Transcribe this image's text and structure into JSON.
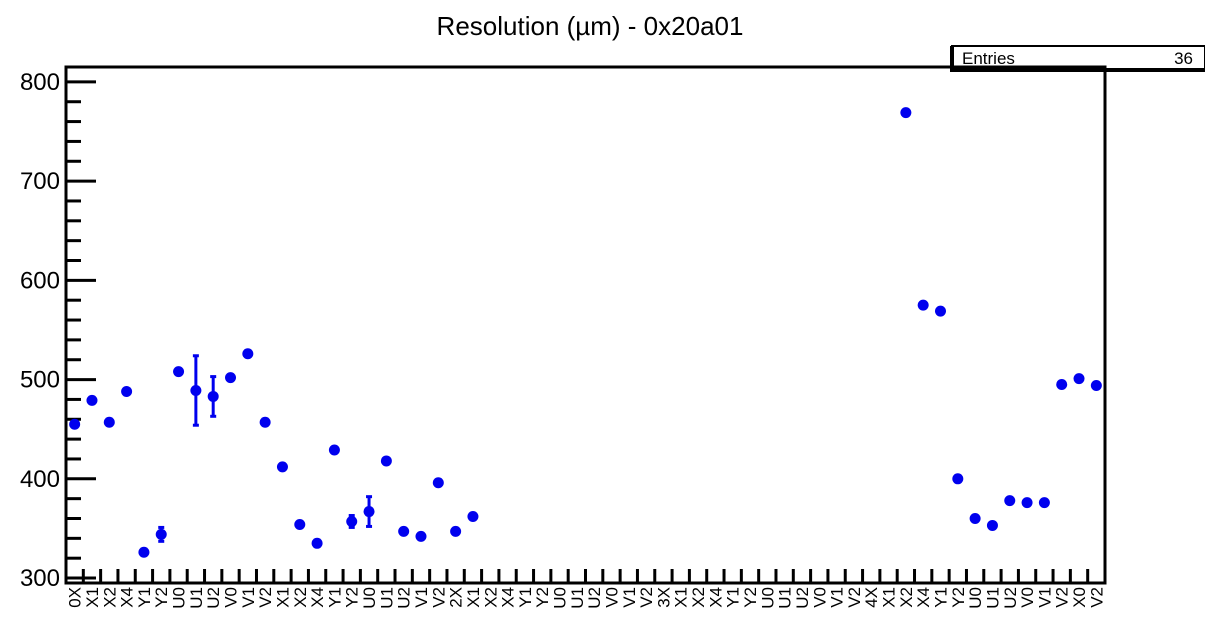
{
  "chart_data": {
    "type": "scatter",
    "title": "Resolution (µm) - 0x20a01",
    "xlabel": "",
    "ylabel": "",
    "ylim": [
      295,
      815
    ],
    "yticks": [
      "300",
      "400",
      "500",
      "600",
      "700",
      "800"
    ],
    "stats": {
      "label": "Entries",
      "value": "36"
    },
    "marker_color": "#0000ee",
    "categories": [
      "0X",
      "X1",
      "X2",
      "X4",
      "Y1",
      "Y2",
      "U0",
      "U1",
      "U2",
      "V0",
      "V1",
      "V2",
      "X0",
      "X1",
      "X2",
      "X4",
      "Y1",
      "Y2",
      "U0",
      "U1",
      "U2",
      "V0",
      "V1",
      "V2",
      "X0",
      "X1",
      "X2",
      "X4",
      "Y1",
      "Y2",
      "U0",
      "U1",
      "U2",
      "V0",
      "V1",
      "V2",
      "X0",
      "X1",
      "X2",
      "X4",
      "Y1",
      "Y2",
      "U0",
      "U1",
      "U2",
      "V0",
      "V1",
      "V2",
      "X0",
      "X1",
      "X2",
      "X4",
      "Y1",
      "Y2",
      "U0",
      "U1",
      "U2",
      "V0",
      "V1",
      "V2"
    ],
    "x_tick_labels": [
      "0X",
      "X1",
      "X2",
      "X4",
      "Y1",
      "Y2",
      "U0",
      "U1",
      "U2",
      "V0",
      "V1",
      "V2",
      "X1",
      "X2",
      "X4",
      "Y1",
      "Y2",
      "U0",
      "U1",
      "U2",
      "V1",
      "V2",
      "2X",
      "X1",
      "X2",
      "X4",
      "Y1",
      "Y2",
      "U0",
      "U1",
      "U2",
      "V0",
      "V1",
      "V2",
      "3X",
      "X1",
      "X2",
      "X4",
      "Y1",
      "Y2",
      "U0",
      "U1",
      "U2",
      "V0",
      "V1",
      "V2",
      "4X",
      "X1",
      "X2",
      "X4",
      "Y1",
      "Y2",
      "U0",
      "U1",
      "U2",
      "V0",
      "V1",
      "V2",
      "X0",
      "V2"
    ],
    "points": [
      {
        "x": 0,
        "y": 455
      },
      {
        "x": 1,
        "y": 479
      },
      {
        "x": 2,
        "y": 457
      },
      {
        "x": 3,
        "y": 488
      },
      {
        "x": 4,
        "y": 326
      },
      {
        "x": 5,
        "y": 344,
        "err": 7
      },
      {
        "x": 6,
        "y": 508
      },
      {
        "x": 7,
        "y": 489,
        "err": 35
      },
      {
        "x": 8,
        "y": 483,
        "err": 20
      },
      {
        "x": 9,
        "y": 502
      },
      {
        "x": 10,
        "y": 526
      },
      {
        "x": 11,
        "y": 457
      },
      {
        "x": 12,
        "y": 412
      },
      {
        "x": 13,
        "y": 354
      },
      {
        "x": 14,
        "y": 335
      },
      {
        "x": 15,
        "y": 429
      },
      {
        "x": 16,
        "y": 357,
        "err": 6
      },
      {
        "x": 17,
        "y": 367,
        "err": 15
      },
      {
        "x": 18,
        "y": 418
      },
      {
        "x": 19,
        "y": 347
      },
      {
        "x": 20,
        "y": 342
      },
      {
        "x": 21,
        "y": 396
      },
      {
        "x": 22,
        "y": 347
      },
      {
        "x": 23,
        "y": 362
      },
      {
        "x": 48,
        "y": 769
      },
      {
        "x": 49,
        "y": 575
      },
      {
        "x": 50,
        "y": 569
      },
      {
        "x": 51,
        "y": 400
      },
      {
        "x": 52,
        "y": 360
      },
      {
        "x": 53,
        "y": 353
      },
      {
        "x": 54,
        "y": 378
      },
      {
        "x": 55,
        "y": 376
      },
      {
        "x": 56,
        "y": 376
      },
      {
        "x": 57,
        "y": 495
      },
      {
        "x": 58,
        "y": 501
      },
      {
        "x": 59,
        "y": 494
      }
    ]
  }
}
